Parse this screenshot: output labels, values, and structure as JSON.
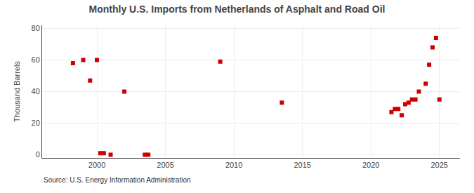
{
  "chart_data": {
    "type": "scatter",
    "title": "Monthly U.S. Imports from Netherlands of Asphalt and Road Oil",
    "ylabel": "Thousand Barrels",
    "annotations": [
      "Source: U.S. Energy Information Administration"
    ],
    "x": [
      1998.25,
      1999.0,
      1999.5,
      2000.0,
      2000.25,
      2000.5,
      2001.0,
      2003.5,
      2003.75,
      2009.0,
      2013.5,
      2002.0,
      2021.5,
      2021.75,
      2022.0,
      2022.25,
      2022.5,
      2022.75,
      2023.0,
      2023.25,
      2023.5,
      2024.0,
      2024.25,
      2024.5,
      2024.75,
      2025.0
    ],
    "values": [
      58,
      60,
      47,
      60,
      1,
      1,
      0,
      0,
      0,
      59,
      33,
      40,
      27,
      29,
      29,
      25,
      32,
      33,
      35,
      35,
      40,
      45,
      57,
      68,
      74,
      35
    ],
    "color": "#cc0000",
    "marker": "square",
    "xlim": [
      1996,
      2026.5
    ],
    "ylim": [
      -2,
      82
    ],
    "xticks": [
      2000,
      2005,
      2010,
      2015,
      2020,
      2025
    ],
    "yticks": [
      0,
      20,
      40,
      60,
      80
    ],
    "grid": true
  }
}
